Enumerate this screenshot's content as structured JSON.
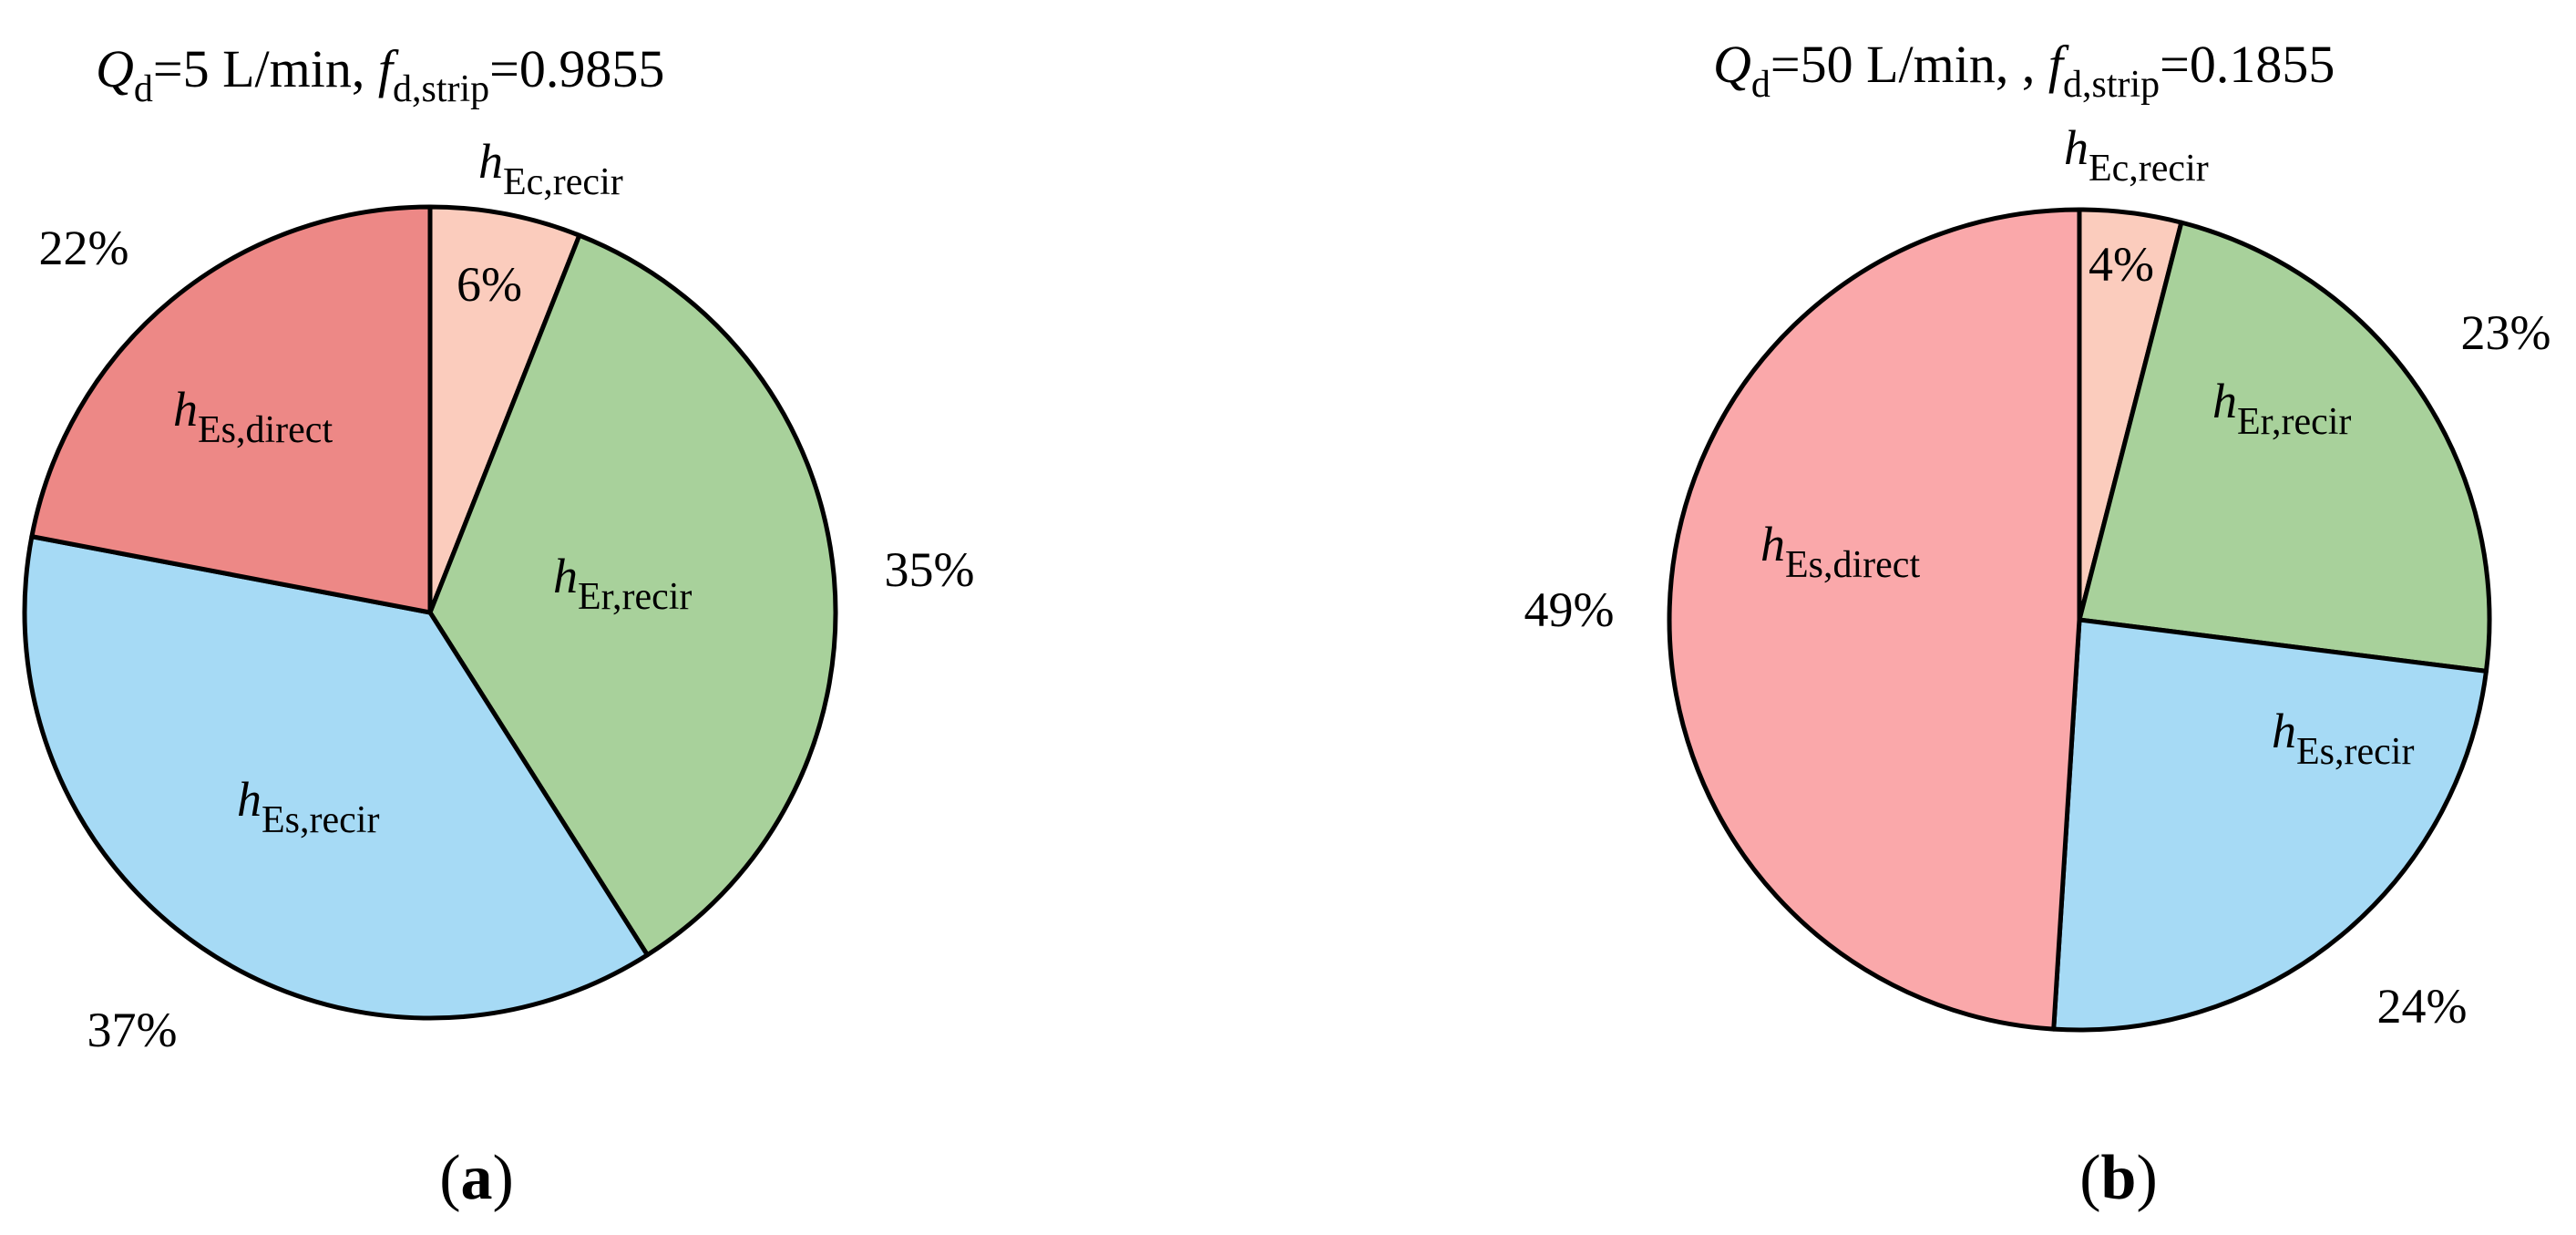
{
  "chart_data": [
    {
      "type": "pie",
      "panel": "(a)",
      "panel_letter": "a",
      "title": {
        "sym1": "Q",
        "sub1": "d",
        "mid": "=5 L/min, ",
        "sym2": "f",
        "sub2": "d,strip",
        "tail": "=0.9855"
      },
      "slices": [
        {
          "sym": "h",
          "sub": "Ec,recir",
          "value": 6,
          "pct": "6%",
          "color": "#FBCCBD"
        },
        {
          "sym": "h",
          "sub": "Er,recir",
          "value": 35,
          "pct": "35%",
          "color": "#A8D19B"
        },
        {
          "sym": "h",
          "sub": "Es,recir",
          "value": 37,
          "pct": "37%",
          "color": "#A6DAF5"
        },
        {
          "sym": "h",
          "sub": "Es,direct",
          "value": 22,
          "pct": "22%",
          "color": "#ED8886"
        }
      ]
    },
    {
      "type": "pie",
      "panel": "(b)",
      "panel_letter": "b",
      "title": {
        "sym1": "Q",
        "sub1": "d",
        "mid": "=50 L/min, , ",
        "sym2": "f",
        "sub2": "d,strip",
        "tail": "=0.1855"
      },
      "slices": [
        {
          "sym": "h",
          "sub": "Ec,recir",
          "value": 4,
          "pct": "4%",
          "color": "#FBCCBD"
        },
        {
          "sym": "h",
          "sub": "Er,recir",
          "value": 23,
          "pct": "23%",
          "color": "#A8D19B"
        },
        {
          "sym": "h",
          "sub": "Es,recir",
          "value": 24,
          "pct": "24%",
          "color": "#A6DAF5"
        },
        {
          "sym": "h",
          "sub": "Es,direct",
          "value": 49,
          "pct": "49%",
          "color": "#FAA8AA"
        }
      ]
    }
  ]
}
